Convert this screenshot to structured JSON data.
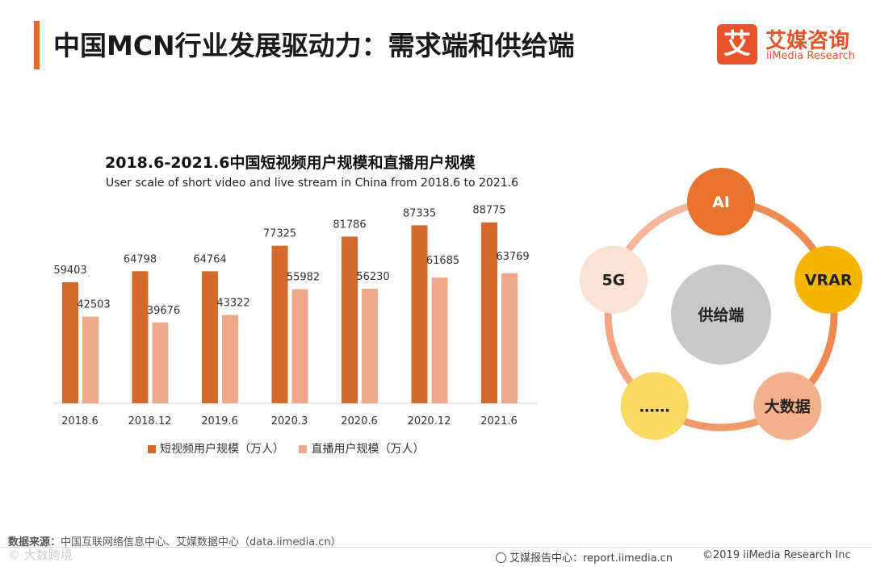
{
  "page": {
    "title": "中国MCN行业发展驱动力：需求端和供给端"
  },
  "logo": {
    "mark": "艾",
    "cn": "艾媒咨询",
    "en": "iiMedia Research"
  },
  "chart_data": {
    "type": "bar",
    "title": "2018.6-2021.6中国短视频用户规模和直播用户规模",
    "subtitle": "User scale of short video and live stream in China from 2018.6 to 2021.6",
    "categories": [
      "2018.6",
      "2018.12",
      "2019.6",
      "2020.3",
      "2020.6",
      "2020.12",
      "2021.6"
    ],
    "series": [
      {
        "name": "短视频用户规模（万人）",
        "color": "#d46a2a",
        "values": [
          59403,
          64798,
          64764,
          77325,
          81786,
          87335,
          88775
        ]
      },
      {
        "name": "直播用户规模（万人）",
        "color": "#f0a88a",
        "values": [
          42503,
          39676,
          43322,
          55982,
          56230,
          61685,
          63769
        ]
      }
    ],
    "ylim": [
      0,
      95000
    ],
    "legend_position": "bottom",
    "grid": false
  },
  "diagram": {
    "center": "供给端",
    "nodes": [
      {
        "label": "AI",
        "color": "#e8732c",
        "text_color": "#ffffff"
      },
      {
        "label": "VRAR",
        "color": "#f7b500",
        "text_color": "#222222"
      },
      {
        "label": "大数据",
        "color": "#f3b08a",
        "text_color": "#222222"
      },
      {
        "label": "……",
        "color": "#fbd962",
        "text_color": "#222222"
      },
      {
        "label": "5G",
        "color": "#fbe3d4",
        "text_color": "#222222"
      }
    ]
  },
  "footer": {
    "source_label": "数据来源：",
    "source_text": "中国互联网络信息中心、艾媒数据中心（data.iimedia.cn）",
    "watermark": "© 大数跨境",
    "report": "艾媒报告中心：report.iimedia.cn",
    "copyright": "©2019  iiMedia Research  Inc"
  }
}
